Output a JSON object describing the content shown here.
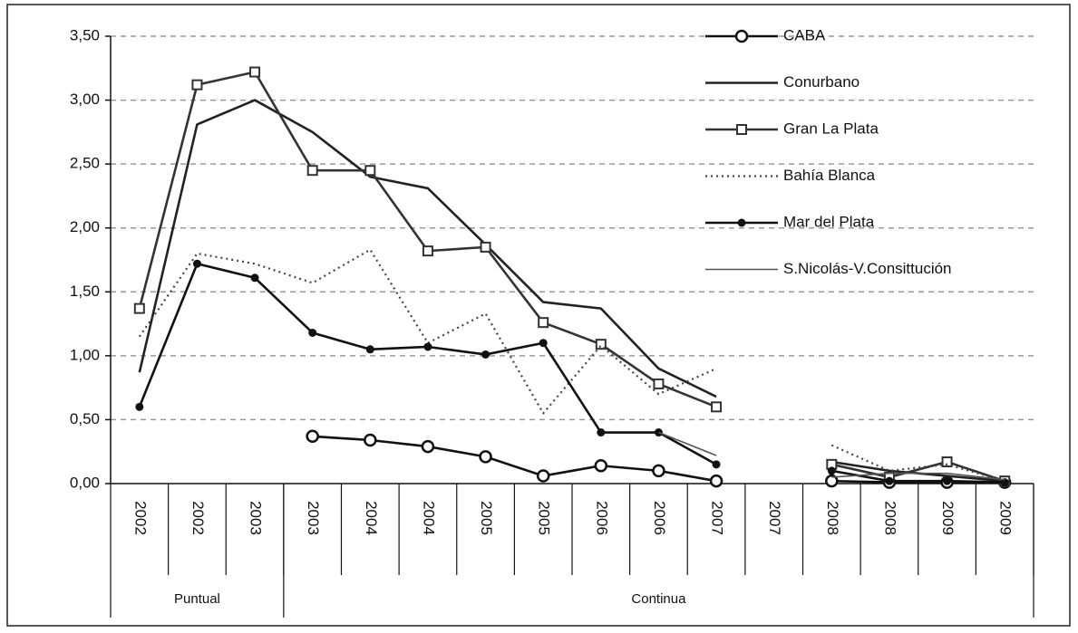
{
  "chart_data": {
    "type": "line",
    "categories": [
      "2002",
      "2002",
      "2003",
      "2003",
      "2004",
      "2004",
      "2005",
      "2005",
      "2006",
      "2006",
      "2007",
      "2007",
      "2008",
      "2008",
      "2009",
      "2009"
    ],
    "groups": [
      {
        "label": "Puntual",
        "span": 3
      },
      {
        "label": "Continua",
        "span": 13
      }
    ],
    "ylim": [
      0,
      3.5
    ],
    "yticks": [
      {
        "value": 0,
        "label": "0,00"
      },
      {
        "value": 0.5,
        "label": "0,50"
      },
      {
        "value": 1,
        "label": "1,00"
      },
      {
        "value": 1.5,
        "label": "1,50"
      },
      {
        "value": 2,
        "label": "2,00"
      },
      {
        "value": 2.5,
        "label": "2,50"
      },
      {
        "value": 3,
        "label": "3,00"
      },
      {
        "value": 3.5,
        "label": "3,50"
      }
    ],
    "grid": true,
    "series": [
      {
        "name": "CABA",
        "color": "#111111",
        "marker": "circle",
        "dash": "solid",
        "values": [
          null,
          null,
          null,
          0.37,
          0.34,
          0.29,
          0.21,
          0.06,
          0.14,
          0.1,
          0.02,
          null,
          0.02,
          0.01,
          0.01,
          0.01
        ]
      },
      {
        "name": "Conurbano",
        "color": "#222222",
        "marker": "none",
        "dash": "solid",
        "values": [
          0.87,
          2.81,
          3.0,
          2.75,
          2.4,
          2.31,
          1.87,
          1.42,
          1.37,
          0.9,
          0.68,
          null,
          0.17,
          0.1,
          0.06,
          0.02
        ]
      },
      {
        "name": "Gran La Plata",
        "color": "#333333",
        "marker": "square",
        "dash": "solid",
        "values": [
          1.37,
          3.12,
          3.22,
          2.45,
          2.45,
          1.82,
          1.85,
          1.26,
          1.09,
          0.78,
          0.6,
          null,
          0.15,
          0.05,
          0.17,
          0.02
        ]
      },
      {
        "name": "Bahía Blanca",
        "color": "#444444",
        "marker": "none",
        "dash": "dotted",
        "values": [
          1.15,
          1.8,
          1.72,
          1.57,
          1.83,
          1.1,
          1.33,
          0.55,
          1.08,
          0.7,
          0.9,
          null,
          0.3,
          0.1,
          0.15,
          0.02
        ]
      },
      {
        "name": "Mar del Plata",
        "color": "#111111",
        "marker": "dot",
        "dash": "solid",
        "values": [
          0.6,
          1.72,
          1.61,
          1.18,
          1.05,
          1.07,
          1.01,
          1.1,
          0.4,
          0.4,
          0.15,
          null,
          0.1,
          0.02,
          0.02,
          0.01
        ]
      },
      {
        "name": "S.Nicolás-V.Consittución",
        "color": "#555555",
        "marker": "none",
        "dash": "thin",
        "values": [
          null,
          null,
          null,
          null,
          null,
          null,
          null,
          null,
          null,
          0.4,
          0.22,
          null,
          0.05,
          0.08,
          0.08,
          0.03
        ]
      }
    ]
  }
}
